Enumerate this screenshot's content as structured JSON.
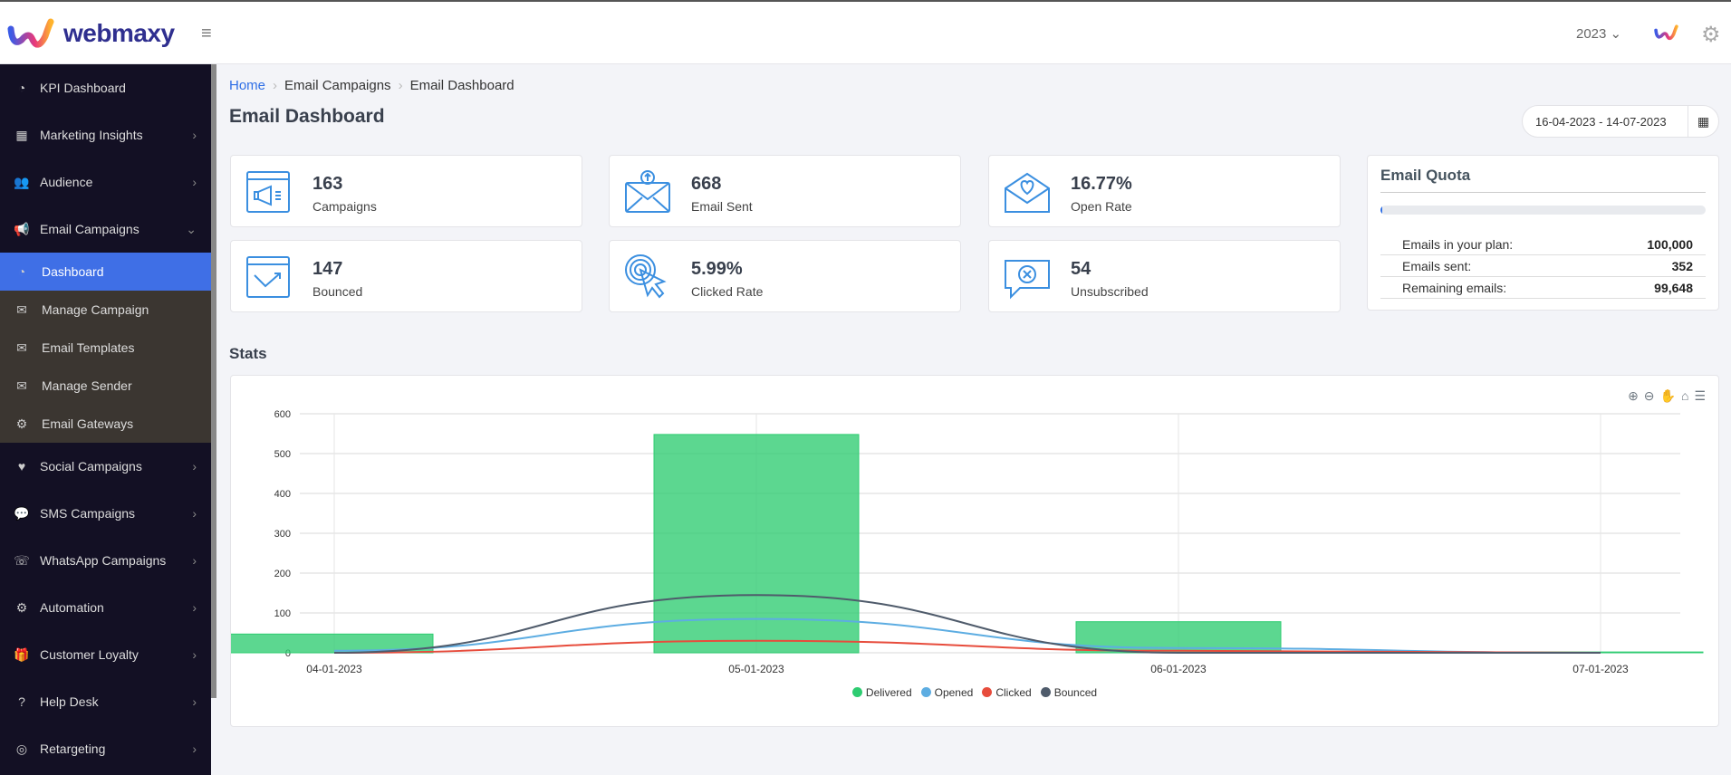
{
  "header": {
    "brand": "webmaxy",
    "year": "2023"
  },
  "sidebar": {
    "items": [
      {
        "label": "KPI Dashboard",
        "icon": "gauge-icon",
        "glyph": "◔",
        "chev": false
      },
      {
        "label": "Marketing Insights",
        "icon": "presentation-icon",
        "glyph": "▦",
        "chev": true
      },
      {
        "label": "Audience",
        "icon": "users-icon",
        "glyph": "👥",
        "chev": true
      },
      {
        "label": "Email Campaigns",
        "icon": "megaphone-icon",
        "glyph": "📢",
        "chev": "down"
      }
    ],
    "submenu": [
      {
        "label": "Dashboard",
        "icon": "gauge-icon",
        "glyph": "◔",
        "active": true
      },
      {
        "label": "Manage Campaign",
        "icon": "mail-settings-icon",
        "glyph": "✉"
      },
      {
        "label": "Email Templates",
        "icon": "envelope-icon",
        "glyph": "✉"
      },
      {
        "label": "Manage Sender",
        "icon": "mail-user-icon",
        "glyph": "✉"
      },
      {
        "label": "Email Gateways",
        "icon": "cog-icon",
        "glyph": "⚙"
      }
    ],
    "items2": [
      {
        "label": "Social Campaigns",
        "icon": "heart-message-icon",
        "glyph": "♥"
      },
      {
        "label": "SMS Campaigns",
        "icon": "chat-icon",
        "glyph": "💬"
      },
      {
        "label": "WhatsApp Campaigns",
        "icon": "whatsapp-icon",
        "glyph": "☏"
      },
      {
        "label": "Automation",
        "icon": "cog-icon",
        "glyph": "⚙"
      },
      {
        "label": "Customer Loyalty",
        "icon": "gift-icon",
        "glyph": "🎁"
      },
      {
        "label": "Help Desk",
        "icon": "question-icon",
        "glyph": "?"
      },
      {
        "label": "Retargeting",
        "icon": "target-icon",
        "glyph": "◎"
      }
    ]
  },
  "breadcrumb": [
    "Home",
    "Email Campaigns",
    "Email Dashboard"
  ],
  "page_title": "Email Dashboard",
  "date_range": "16-04-2023 - 14-07-2023",
  "cards": [
    {
      "value": "163",
      "label": "Campaigns",
      "icon": "megaphone-browser-icon"
    },
    {
      "value": "668",
      "label": "Email Sent",
      "icon": "envelope-sent-icon"
    },
    {
      "value": "16.77%",
      "label": "Open Rate",
      "icon": "envelope-heart-icon"
    },
    {
      "value": "147",
      "label": "Bounced",
      "icon": "browser-arrow-icon"
    },
    {
      "value": "5.99%",
      "label": "Clicked Rate",
      "icon": "click-pointer-icon"
    },
    {
      "value": "54",
      "label": "Unsubscribed",
      "icon": "chat-x-icon"
    }
  ],
  "quota": {
    "title": "Email Quota",
    "used_fraction": 0.0035,
    "rows": [
      {
        "label": "Emails in your plan:",
        "value": "100,000"
      },
      {
        "label": "Emails sent:",
        "value": "352"
      },
      {
        "label": "Remaining emails:",
        "value": "99,648"
      }
    ]
  },
  "stats_title": "Stats",
  "colors": {
    "accent": "#3f6fe6",
    "delivered": "#2ecc71",
    "opened": "#5dade2",
    "clicked": "#e74c3c",
    "bounced": "#4f5b6b"
  },
  "chart_data": {
    "type": "bar",
    "categories": [
      "04-01-2023",
      "05-01-2023",
      "06-01-2023",
      "07-01-2023"
    ],
    "ylim": [
      0,
      600
    ],
    "yticks": [
      0,
      100,
      200,
      300,
      400,
      500,
      600
    ],
    "grid": true,
    "legend": "bottom",
    "series": [
      {
        "name": "Delivered",
        "type": "bar",
        "values": [
          47,
          548,
          78,
          2
        ]
      },
      {
        "name": "Opened",
        "type": "line",
        "values": [
          5,
          85,
          12,
          0
        ]
      },
      {
        "name": "Clicked",
        "type": "line",
        "values": [
          0,
          30,
          5,
          0
        ]
      },
      {
        "name": "Bounced",
        "type": "line",
        "values": [
          0,
          145,
          0,
          0
        ]
      }
    ]
  }
}
